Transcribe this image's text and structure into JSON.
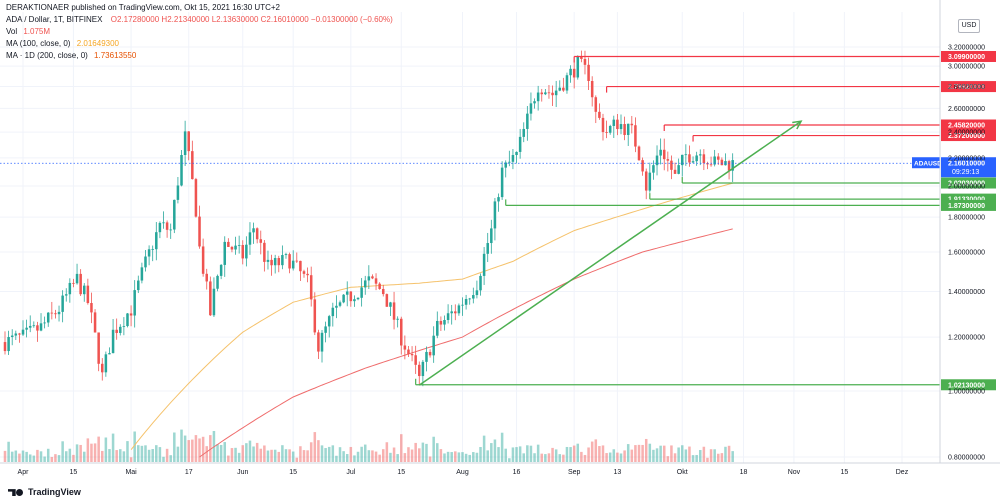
{
  "header": {
    "published": "DERAKTIONAER published on TradingView.com, Okt 15, 2021 16:30 UTC+2",
    "symbol": "ADA / Dollar, 1T, BITFINEX",
    "ohlc": "O2.17280000  H2.21340000  L2.13630000  C2.16010000  −0.01300000 (−0.60%)",
    "vol_label": "Vol",
    "vol_value": "1.075M",
    "ma100_label": "MA (100, close, 0)",
    "ma100_value": "2.01649300",
    "ma200_label": "MA · 1D (200, close, 0)",
    "ma200_value": "1.73613550"
  },
  "currency_button": "USD",
  "brand": "TradingView",
  "colors": {
    "up": "#26a69a",
    "down": "#ef5350",
    "resistance": "#f23645",
    "support": "#4caf50",
    "trendline": "#4caf50",
    "ma100": "#f5c26b",
    "ma200": "#ef6c6c"
  },
  "chart_data": {
    "type": "candlestick",
    "x_tick_labels": [
      "Apr",
      "15",
      "Mai",
      "17",
      "Jun",
      "15",
      "Jul",
      "15",
      "Aug",
      "16",
      "Sep",
      "13",
      "Okt",
      "18",
      "Nov",
      "15",
      "Dez"
    ],
    "y_tick_labels": [
      "0.80000000",
      "1.00000000",
      "1.20000000",
      "1.40000000",
      "1.60000000",
      "1.80000000",
      "2.00000000",
      "2.20000000",
      "2.40000000",
      "2.60000000",
      "2.80000000",
      "3.00000000",
      "3.20000000"
    ],
    "y_ticks": [
      0.8,
      1.0,
      1.2,
      1.4,
      1.6,
      1.8,
      2.0,
      2.2,
      2.4,
      2.6,
      2.8,
      3.0,
      3.2
    ],
    "last_price": {
      "symbol": "ADAUSD",
      "value": "2.16010000",
      "countdown": "09:29:13"
    },
    "resistance_levels": [
      {
        "label": "3.09900000",
        "value": 3.099
      },
      {
        "label": "2.79920000",
        "value": 2.7992
      },
      {
        "label": "2.45820000",
        "value": 2.4582
      },
      {
        "label": "2.37200000",
        "value": 2.372
      }
    ],
    "support_levels": [
      {
        "label": "2.02030000",
        "value": 2.0203
      },
      {
        "label": "1.91330000",
        "value": 1.9133
      },
      {
        "label": "1.87300000",
        "value": 1.873
      },
      {
        "label": "1.02130000",
        "value": 1.0213
      }
    ],
    "trendline": {
      "from": {
        "date": "2021-07-20",
        "price": 1.02
      },
      "to": {
        "date": "2021-11-03",
        "price": 2.49
      }
    },
    "price_keypoints": [
      {
        "date": "2021-03-27",
        "price": 1.18
      },
      {
        "date": "2021-04-01",
        "price": 1.2
      },
      {
        "date": "2021-04-06",
        "price": 1.24
      },
      {
        "date": "2021-04-11",
        "price": 1.32
      },
      {
        "date": "2021-04-16",
        "price": 1.46
      },
      {
        "date": "2021-04-19",
        "price": 1.35
      },
      {
        "date": "2021-04-23",
        "price": 1.05
      },
      {
        "date": "2021-04-26",
        "price": 1.22
      },
      {
        "date": "2021-05-01",
        "price": 1.32
      },
      {
        "date": "2021-05-05",
        "price": 1.54
      },
      {
        "date": "2021-05-09",
        "price": 1.75
      },
      {
        "date": "2021-05-12",
        "price": 1.72
      },
      {
        "date": "2021-05-16",
        "price": 2.36
      },
      {
        "date": "2021-05-19",
        "price": 1.85
      },
      {
        "date": "2021-05-20",
        "price": 1.62
      },
      {
        "date": "2021-05-23",
        "price": 1.3
      },
      {
        "date": "2021-05-27",
        "price": 1.65
      },
      {
        "date": "2021-06-01",
        "price": 1.58
      },
      {
        "date": "2021-06-04",
        "price": 1.74
      },
      {
        "date": "2021-06-08",
        "price": 1.52
      },
      {
        "date": "2021-06-14",
        "price": 1.56
      },
      {
        "date": "2021-06-19",
        "price": 1.44
      },
      {
        "date": "2021-06-22",
        "price": 1.16
      },
      {
        "date": "2021-06-26",
        "price": 1.3
      },
      {
        "date": "2021-07-01",
        "price": 1.38
      },
      {
        "date": "2021-07-06",
        "price": 1.45
      },
      {
        "date": "2021-07-10",
        "price": 1.4
      },
      {
        "date": "2021-07-15",
        "price": 1.2
      },
      {
        "date": "2021-07-20",
        "price": 1.04
      },
      {
        "date": "2021-07-25",
        "price": 1.24
      },
      {
        "date": "2021-07-31",
        "price": 1.33
      },
      {
        "date": "2021-08-05",
        "price": 1.44
      },
      {
        "date": "2021-08-09",
        "price": 1.72
      },
      {
        "date": "2021-08-12",
        "price": 2.1
      },
      {
        "date": "2021-08-16",
        "price": 2.22
      },
      {
        "date": "2021-08-19",
        "price": 2.5
      },
      {
        "date": "2021-08-22",
        "price": 2.82
      },
      {
        "date": "2021-08-26",
        "price": 2.73
      },
      {
        "date": "2021-08-30",
        "price": 2.88
      },
      {
        "date": "2021-09-02",
        "price": 3.02
      },
      {
        "date": "2021-09-05",
        "price": 2.92
      },
      {
        "date": "2021-09-07",
        "price": 2.55
      },
      {
        "date": "2021-09-10",
        "price": 2.4
      },
      {
        "date": "2021-09-13",
        "price": 2.48
      },
      {
        "date": "2021-09-17",
        "price": 2.4
      },
      {
        "date": "2021-09-20",
        "price": 2.15
      },
      {
        "date": "2021-09-21",
        "price": 2.0
      },
      {
        "date": "2021-09-25",
        "price": 2.28
      },
      {
        "date": "2021-09-29",
        "price": 2.06
      },
      {
        "date": "2021-10-02",
        "price": 2.22
      },
      {
        "date": "2021-10-06",
        "price": 2.24
      },
      {
        "date": "2021-10-10",
        "price": 2.16
      },
      {
        "date": "2021-10-15",
        "price": 2.16
      }
    ],
    "ma100_keypoints": [
      {
        "date": "2021-05-01",
        "price": 0.82
      },
      {
        "date": "2021-05-15",
        "price": 1.0
      },
      {
        "date": "2021-06-01",
        "price": 1.22
      },
      {
        "date": "2021-06-15",
        "price": 1.35
      },
      {
        "date": "2021-07-01",
        "price": 1.42
      },
      {
        "date": "2021-07-20",
        "price": 1.44
      },
      {
        "date": "2021-08-01",
        "price": 1.46
      },
      {
        "date": "2021-08-15",
        "price": 1.55
      },
      {
        "date": "2021-09-01",
        "price": 1.72
      },
      {
        "date": "2021-09-20",
        "price": 1.85
      },
      {
        "date": "2021-10-15",
        "price": 2.02
      }
    ],
    "ma200_keypoints": [
      {
        "date": "2021-05-20",
        "price": 0.8
      },
      {
        "date": "2021-06-15",
        "price": 0.98
      },
      {
        "date": "2021-07-05",
        "price": 1.08
      },
      {
        "date": "2021-08-01",
        "price": 1.2
      },
      {
        "date": "2021-09-01",
        "price": 1.46
      },
      {
        "date": "2021-09-20",
        "price": 1.6
      },
      {
        "date": "2021-10-15",
        "price": 1.73
      }
    ]
  }
}
